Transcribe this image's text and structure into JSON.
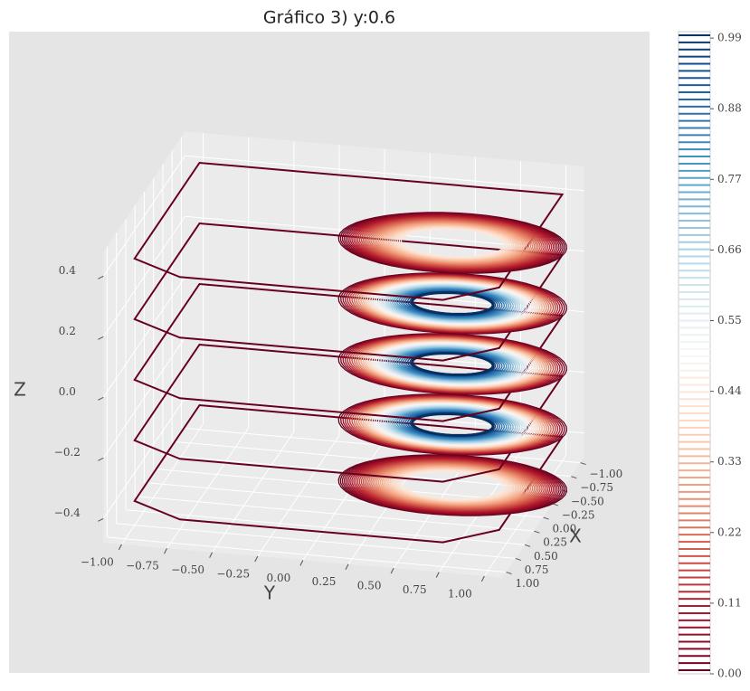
{
  "chart_data": {
    "type": "contour3d",
    "title": "Gráfico 3) y:0.6",
    "xlabel": "X",
    "ylabel": "Y",
    "zlabel": "Z",
    "xlim": [
      -1.1,
      1.1
    ],
    "ylim": [
      -1.1,
      1.1
    ],
    "zlim": [
      -0.48,
      0.48
    ],
    "xticks": [
      {
        "value": -1,
        "label": "−1.00"
      },
      {
        "value": -0.75,
        "label": "−0.75"
      },
      {
        "value": -0.5,
        "label": "−0.50"
      },
      {
        "value": -0.25,
        "label": "−0.25"
      },
      {
        "value": 0,
        "label": "0.00"
      },
      {
        "value": 0.25,
        "label": "0.25"
      },
      {
        "value": 0.5,
        "label": "0.50"
      },
      {
        "value": 0.75,
        "label": "0.75"
      },
      {
        "value": 1,
        "label": "1.00"
      }
    ],
    "yticks": [
      {
        "value": -1,
        "label": "−1.00"
      },
      {
        "value": -0.75,
        "label": "−0.75"
      },
      {
        "value": -0.5,
        "label": "−0.50"
      },
      {
        "value": -0.25,
        "label": "−0.25"
      },
      {
        "value": 0,
        "label": "0.00"
      },
      {
        "value": 0.25,
        "label": "0.25"
      },
      {
        "value": 0.5,
        "label": "0.50"
      },
      {
        "value": 0.75,
        "label": "0.75"
      },
      {
        "value": 1,
        "label": "1.00"
      }
    ],
    "zticks": [
      {
        "value": -0.4,
        "label": "−0.4"
      },
      {
        "value": -0.2,
        "label": "−0.2"
      },
      {
        "value": 0,
        "label": "0.0"
      },
      {
        "value": 0.2,
        "label": "0.2"
      },
      {
        "value": 0.4,
        "label": "0.4"
      }
    ],
    "slices": [
      -0.4,
      -0.2,
      0,
      0.2,
      0.4
    ],
    "center": {
      "x": 0,
      "y": 0.6
    },
    "colormap": "RdBu",
    "levels": 90,
    "grid": true,
    "colorbar": {
      "lim": [
        0,
        1
      ],
      "ticks": [
        {
          "value": 0,
          "label": "0.00"
        },
        0.11,
        0.22,
        0.33,
        0.44,
        0.55,
        0.66,
        0.77,
        0.88,
        0.99
      ]
    }
  }
}
